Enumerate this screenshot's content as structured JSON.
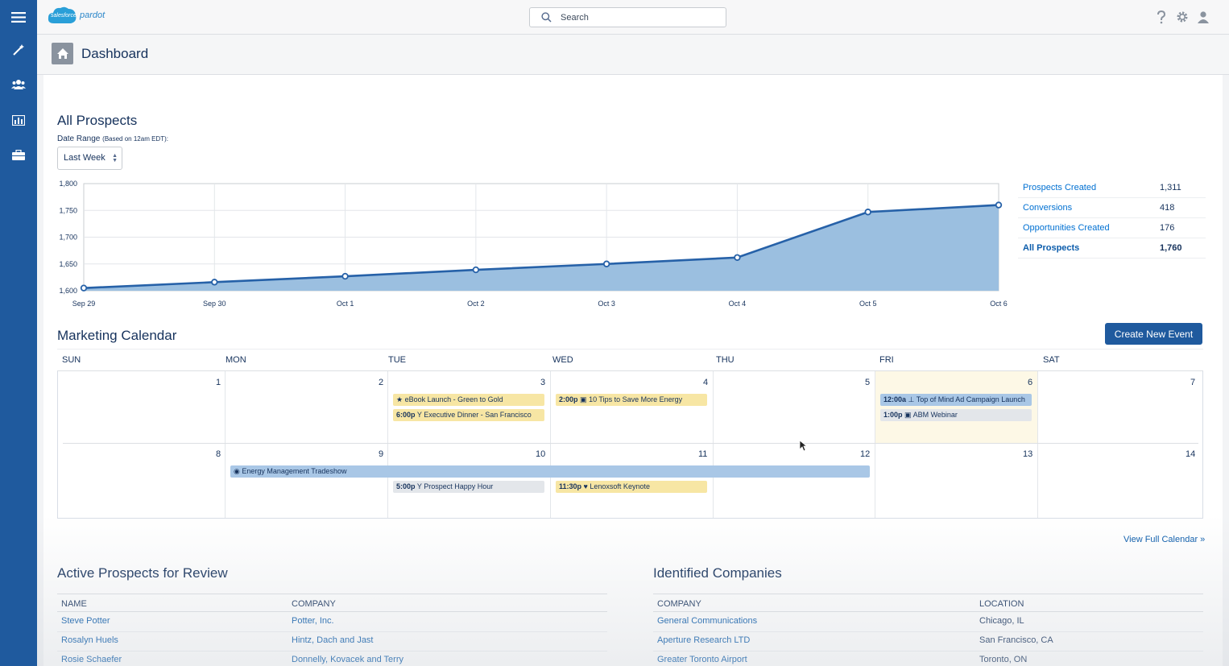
{
  "app": {
    "logo_small": "salesforce",
    "logo_name": "pardot"
  },
  "nav": {
    "items": [
      {
        "name": "menu",
        "icon": "hamburger-icon"
      },
      {
        "name": "marketing",
        "icon": "magic-wand-icon"
      },
      {
        "name": "prospects",
        "icon": "people-icon"
      },
      {
        "name": "reports",
        "icon": "bar-chart-icon"
      },
      {
        "name": "admin",
        "icon": "briefcase-icon"
      }
    ]
  },
  "search": {
    "placeholder": "Search"
  },
  "header_icons": [
    "help-icon",
    "settings-icon",
    "user-icon"
  ],
  "page": {
    "title": "Dashboard"
  },
  "all_prospects": {
    "title": "All Prospects",
    "date_range_label": "Date Range",
    "date_range_note": "(Based on 12am EDT):",
    "date_range_value": "Last Week",
    "stats": [
      {
        "label": "Prospects Created",
        "value": "1,311"
      },
      {
        "label": "Conversions",
        "value": "418"
      },
      {
        "label": "Opportunities Created",
        "value": "176"
      },
      {
        "label": "All Prospects",
        "value": "1,760"
      }
    ]
  },
  "chart_data": {
    "type": "area",
    "categories": [
      "Sep 29",
      "Sep 30",
      "Oct 1",
      "Oct 2",
      "Oct 3",
      "Oct 4",
      "Oct 5",
      "Oct 6"
    ],
    "values": [
      1605,
      1616,
      1627,
      1639,
      1650,
      1662,
      1747,
      1760
    ],
    "ylim": [
      1600,
      1800
    ],
    "yticks": [
      "1,800",
      "1,750",
      "1,700",
      "1,650",
      "1,600"
    ],
    "grid": true,
    "colors": {
      "line": "#2661a8",
      "fill": "#9bbfe0"
    }
  },
  "calendar": {
    "title": "Marketing Calendar",
    "create_label": "Create New Event",
    "view_full_label": "View Full Calendar »",
    "days_of_week": [
      "SUN",
      "MON",
      "TUE",
      "WED",
      "THU",
      "FRI",
      "SAT"
    ],
    "week1": [
      "1",
      "2",
      "3",
      "4",
      "5",
      "6",
      "7"
    ],
    "week2": [
      "8",
      "9",
      "10",
      "11",
      "12",
      "13",
      "14"
    ],
    "events": [
      {
        "time": "",
        "icon": "star-icon",
        "glyph": "★",
        "title": "eBook Launch - Green to Gold"
      },
      {
        "time": "6:00p",
        "icon": "cocktail-icon",
        "glyph": "Y",
        "title": "Executive Dinner - San Francisco"
      },
      {
        "time": "2:00p",
        "icon": "calendar-icon",
        "glyph": "▣",
        "title": "10 Tips to Save More Energy"
      },
      {
        "time": "12:00a",
        "icon": "pin-icon",
        "glyph": "⊥",
        "title": "Top of Mind Ad Campaign Launch"
      },
      {
        "time": "1:00p",
        "icon": "calendar-icon",
        "glyph": "▣",
        "title": "ABM Webinar"
      },
      {
        "time": "",
        "icon": "location-icon",
        "glyph": "◉",
        "title": "Energy Management Tradeshow"
      },
      {
        "time": "5:00p",
        "icon": "cocktail-icon",
        "glyph": "Y",
        "title": "Prospect Happy Hour"
      },
      {
        "time": "11:30p",
        "icon": "heart-icon",
        "glyph": "♥",
        "title": "Lenoxsoft Keynote"
      }
    ]
  },
  "active_prospects": {
    "title": "Active Prospects for Review",
    "columns": [
      "NAME",
      "COMPANY"
    ],
    "rows": [
      {
        "name": "Steve Potter",
        "company": "Potter, Inc."
      },
      {
        "name": "Rosalyn Huels",
        "company": "Hintz, Dach and Jast"
      },
      {
        "name": "Rosie Schaefer",
        "company": "Donnelly, Kovacek and Terry"
      }
    ]
  },
  "identified_companies": {
    "title": "Identified Companies",
    "columns": [
      "COMPANY",
      "LOCATION"
    ],
    "rows": [
      {
        "company": "General Communications",
        "location": "Chicago, IL"
      },
      {
        "company": "Aperture Research LTD",
        "location": "San Francisco, CA"
      },
      {
        "company": "Greater Toronto Airport",
        "location": "Toronto, ON"
      }
    ]
  }
}
